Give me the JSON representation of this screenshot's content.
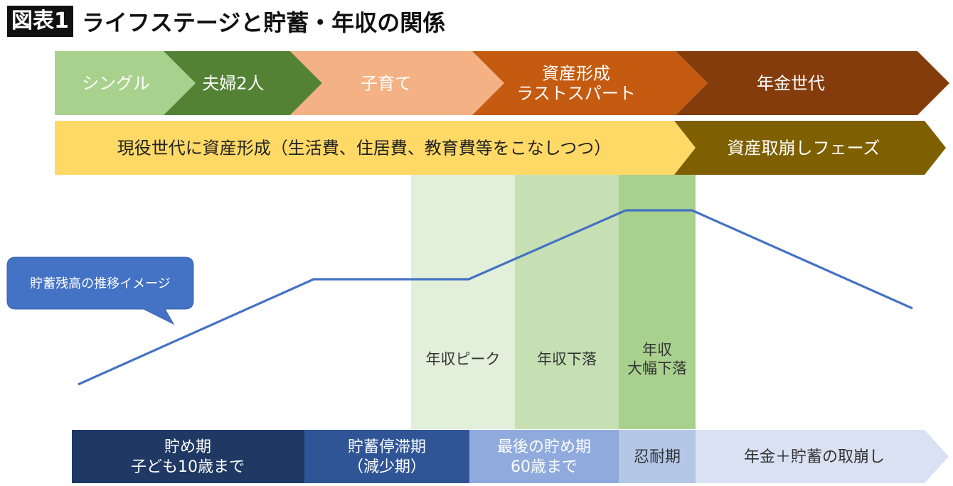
{
  "figure_label": "図表1",
  "title": "ライフステージと貯蓄・年収の関係",
  "colors": {
    "single": "#a9d18e",
    "couple": "#548235",
    "childcare": "#f4b183",
    "asset_spurt": "#c55a11",
    "pension": "#843c0c",
    "phase_formation": "#ffd966",
    "phase_withdrawal": "#7f6000",
    "band_peak": "#e2efda",
    "band_decline": "#c6e0b4",
    "band_big_decline": "#a9d18e",
    "saving_period": "#203864",
    "stagnant_period": "#2f5597",
    "last_saving": "#8faadc",
    "endurance": "#b4c7e7",
    "withdrawal": "#d9e2f3",
    "line": "#4472c4",
    "callout": "#4472c4"
  },
  "life_stages": [
    {
      "lines": [
        "シングル"
      ]
    },
    {
      "lines": [
        "夫婦2人"
      ]
    },
    {
      "lines": [
        "子育て"
      ]
    },
    {
      "lines": [
        "資産形成",
        "ラストスパート"
      ]
    },
    {
      "lines": [
        "年金世代"
      ]
    }
  ],
  "phases": [
    {
      "lines": [
        "現役世代に資産形成（生活費、住居費、教育費等をこなしつつ）"
      ]
    },
    {
      "lines": [
        "資産取崩しフェーズ"
      ]
    }
  ],
  "income_bands": [
    {
      "lines": [
        "年収ピーク"
      ]
    },
    {
      "lines": [
        "年収下落"
      ]
    },
    {
      "lines": [
        "年収",
        "大幅下落"
      ]
    }
  ],
  "callout": {
    "text": "貯蓄残高の推移イメージ"
  },
  "savings_periods": [
    {
      "lines": [
        "貯め期",
        "子ども10歳まで"
      ]
    },
    {
      "lines": [
        "貯蓄停滞期",
        "（減少期）"
      ]
    },
    {
      "lines": [
        "最後の貯め期",
        "60歳まで"
      ]
    },
    {
      "lines": [
        "忍耐期"
      ]
    },
    {
      "lines": [
        "年金＋貯蓄の取崩し"
      ]
    }
  ]
}
